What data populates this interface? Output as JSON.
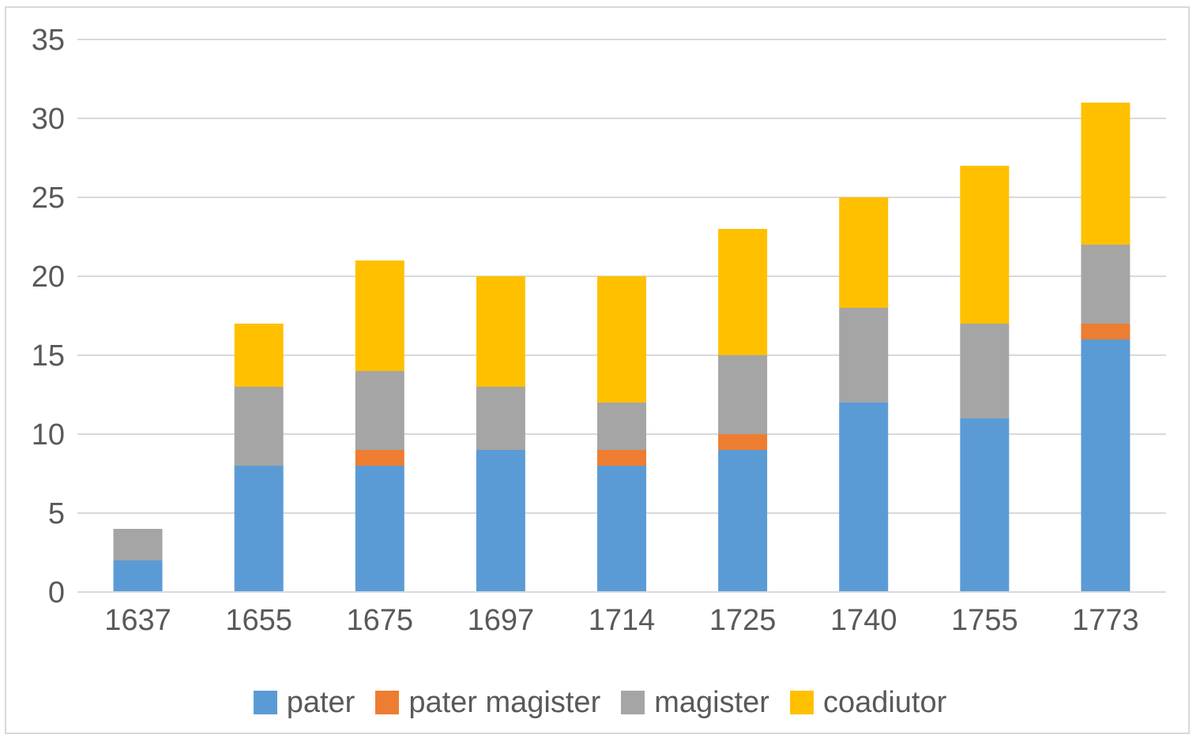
{
  "chart_data": {
    "type": "bar",
    "stacked": true,
    "title": "",
    "xlabel": "",
    "ylabel": "",
    "ylim": [
      0,
      35
    ],
    "yticks": [
      0,
      5,
      10,
      15,
      20,
      25,
      30,
      35
    ],
    "grid": true,
    "legend_position": "bottom",
    "categories": [
      "1637",
      "1655",
      "1675",
      "1697",
      "1714",
      "1725",
      "1740",
      "1755",
      "1773"
    ],
    "series": [
      {
        "name": "pater",
        "color": "#5b9bd5",
        "values": [
          2,
          8,
          8,
          9,
          8,
          9,
          12,
          11,
          16
        ]
      },
      {
        "name": "pater magister",
        "color": "#ed7d31",
        "values": [
          0,
          0,
          1,
          0,
          1,
          1,
          0,
          0,
          1
        ]
      },
      {
        "name": "magister",
        "color": "#a5a5a5",
        "values": [
          2,
          5,
          5,
          4,
          3,
          5,
          6,
          6,
          5
        ]
      },
      {
        "name": "coadiutor",
        "color": "#ffc000",
        "values": [
          0,
          4,
          7,
          7,
          8,
          8,
          7,
          10,
          9
        ]
      }
    ]
  }
}
